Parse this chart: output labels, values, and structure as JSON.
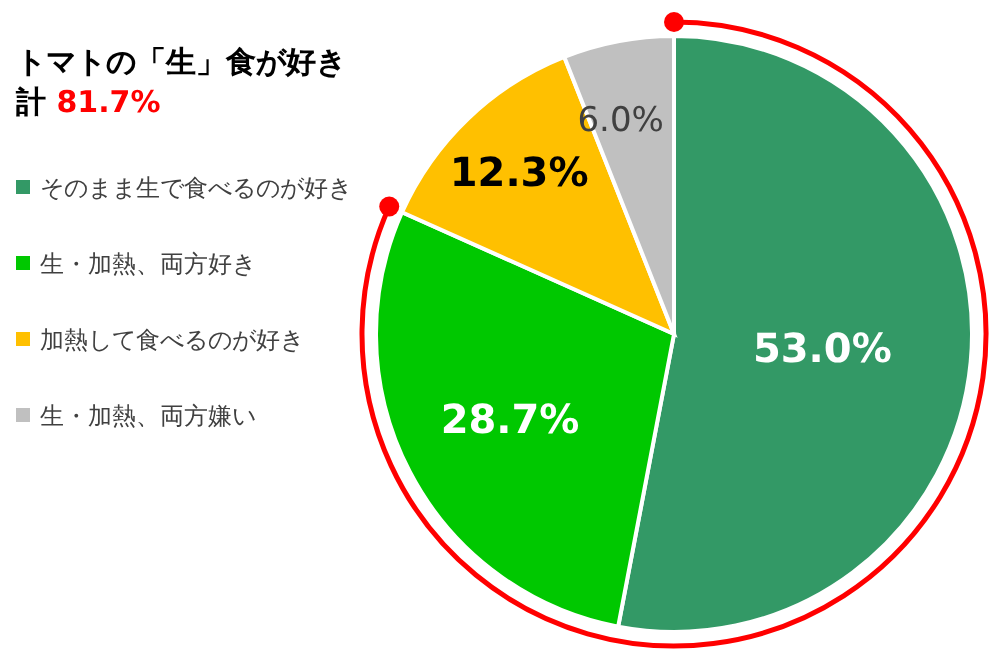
{
  "chart_data": {
    "type": "pie",
    "title": "トマトの「生」食が好き",
    "subtitle": "計 81.7%",
    "categories": [
      "そのまま生で食べるのが好き",
      "生・加熱、両方好き",
      "加熱して食べるのが好き",
      "生・加熱、両方嫌い"
    ],
    "values": [
      53.0,
      28.7,
      12.3,
      6.0
    ],
    "colors": [
      "#339966",
      "#00c800",
      "#ffc000",
      "#c0c0c0"
    ],
    "value_labels": [
      "53.0%",
      "28.7%",
      "12.3%",
      "6.0%"
    ],
    "legend": "left"
  }
}
